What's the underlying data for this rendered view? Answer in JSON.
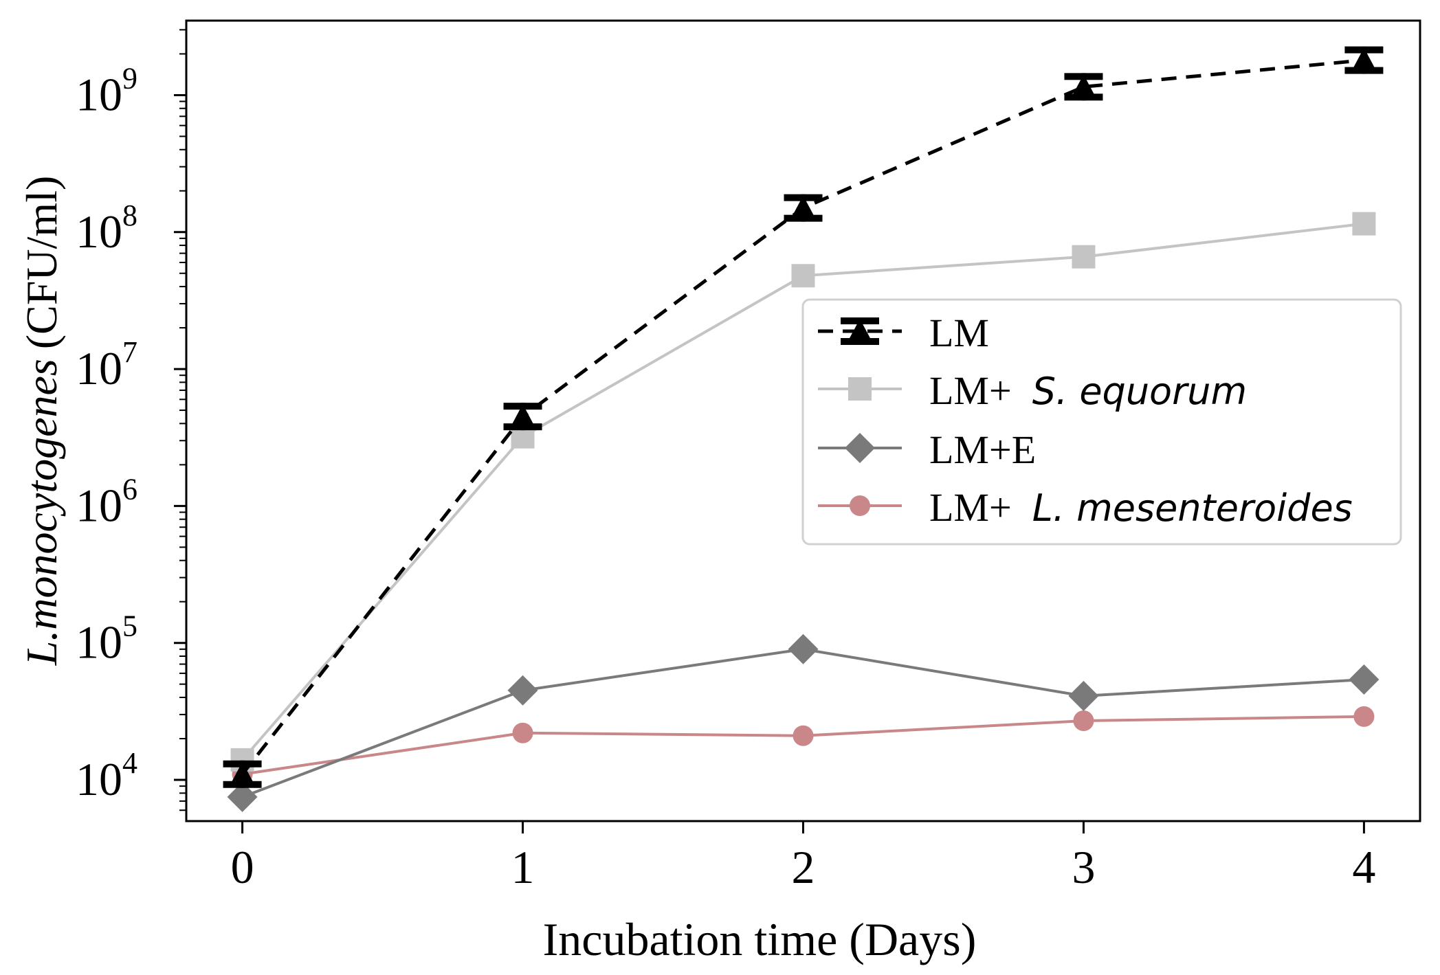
{
  "chart_data": {
    "type": "line",
    "x": [
      0,
      1,
      2,
      3,
      4
    ],
    "xlabel": "Incubation time (Days)",
    "ylabel_italic": "L.monocytogenes",
    "ylabel_units": "(CFU/ml)",
    "yscale": "log",
    "ylim": [
      5000,
      3500000000
    ],
    "xlim": [
      -0.2,
      4.2
    ],
    "x_ticks": [
      "0",
      "1",
      "2",
      "3",
      "4"
    ],
    "y_ticks": [
      {
        "base": "10",
        "exp": "4",
        "value": 10000
      },
      {
        "base": "10",
        "exp": "5",
        "value": 100000
      },
      {
        "base": "10",
        "exp": "6",
        "value": 1000000
      },
      {
        "base": "10",
        "exp": "7",
        "value": 10000000
      },
      {
        "base": "10",
        "exp": "8",
        "value": 100000000
      },
      {
        "base": "10",
        "exp": "9",
        "value": 1000000000
      }
    ],
    "legend_position": "center-right",
    "series": [
      {
        "name": "LM",
        "legend_plain": "LM",
        "legend_italic": "",
        "values": [
          11000,
          4500000,
          150000000,
          1150000000,
          1800000000
        ],
        "color": "#000000",
        "dash": "dashed",
        "marker": "triangle-errorbar"
      },
      {
        "name": "LM+ S. equorum",
        "legend_plain": "LM+",
        "legend_italic": "S. equorum",
        "values": [
          14000,
          3200000,
          48000000,
          66000000,
          115000000
        ],
        "color": "#c4c4c4",
        "dash": "solid",
        "marker": "square"
      },
      {
        "name": "LM+E",
        "legend_plain": "LM+E",
        "legend_italic": "",
        "values": [
          7500,
          45000,
          90000,
          41000,
          54000
        ],
        "color": "#7a7a7a",
        "dash": "solid",
        "marker": "diamond"
      },
      {
        "name": "LM+ L. mesenteroides",
        "legend_plain": "LM+",
        "legend_italic": "L. mesenteroides",
        "values": [
          11000,
          22000,
          21000,
          27000,
          29000
        ],
        "color": "#c98789",
        "dash": "solid",
        "marker": "circle"
      }
    ]
  }
}
